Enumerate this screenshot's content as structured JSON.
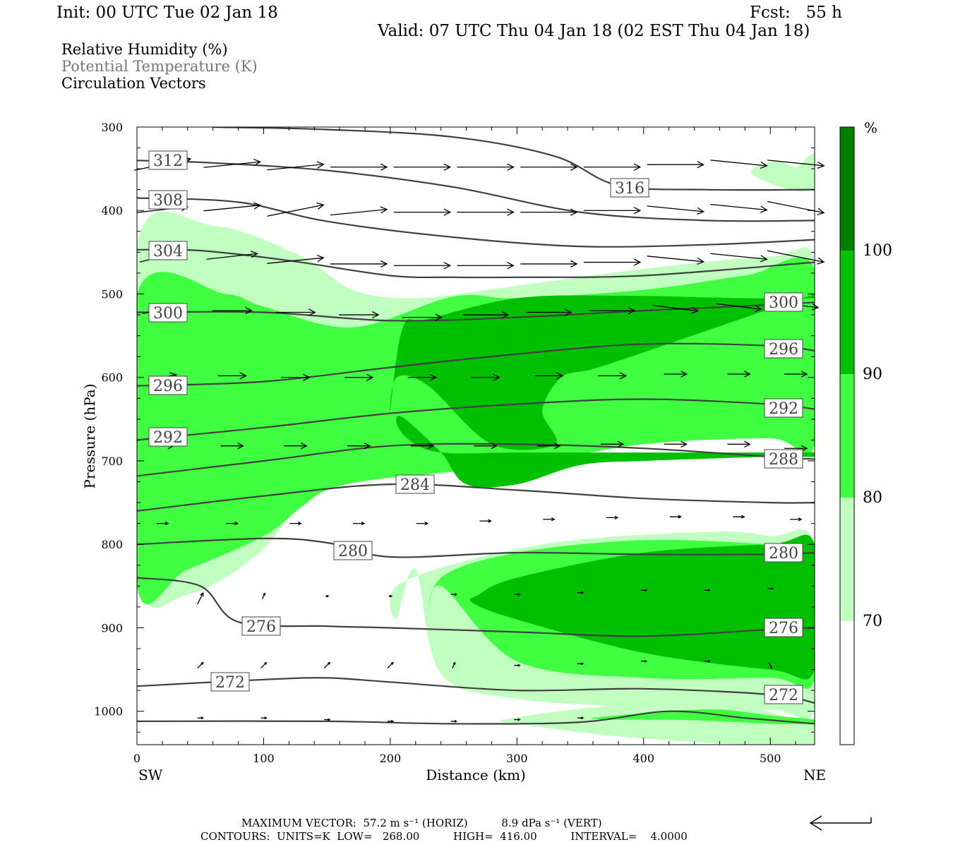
{
  "header": {
    "init": "Init: 00 UTC Tue 02 Jan 18",
    "fcst": "Fcst:   55 h",
    "valid": "Valid: 07 UTC Thu 04 Jan 18 (02 EST Thu 04 Jan 18)",
    "legend_lines": [
      "Relative Humidity (%)",
      "Potential Temperature (K)",
      "Circulation Vectors"
    ]
  },
  "footer": {
    "max_vector": "MAXIMUM VECTOR:  57.2 m s⁻¹ (HORIZ)          8.9 dPa s⁻¹ (VERT)",
    "contours": "CONTOURS:  UNITS=K  LOW=   268.00          HIGH=  416.00          INTERVAL=    4.0000"
  },
  "colors": {
    "rh_70_80": "#c0ffc0",
    "rh_80_90": "#40ff40",
    "rh_90_100": "#00c000",
    "rh_100": "#008000",
    "contour": "#404040"
  },
  "chart_data": {
    "type": "heatmap",
    "title": "Relative Humidity (%)",
    "xlabel": "Distance (km)",
    "ylabel": "Pressure (hPa)",
    "x_end_labels": [
      "SW",
      "NE"
    ],
    "xlim": [
      0,
      535
    ],
    "ylim": [
      300,
      1040
    ],
    "y_inverted": true,
    "xticks": [
      0,
      100,
      200,
      300,
      400,
      500
    ],
    "yticks": [
      300,
      400,
      500,
      600,
      700,
      800,
      900,
      1000
    ],
    "colorbar": {
      "unit": "%",
      "levels": [
        70,
        80,
        90,
        100
      ]
    },
    "theta_contours": [
      {
        "label": "312",
        "x": [
          0,
          60,
          150,
          250,
          350,
          450,
          535
        ],
        "p": [
          340,
          343,
          352,
          372,
          402,
          412,
          412
        ]
      },
      {
        "label": "316",
        "x": [
          60,
          150,
          250,
          330,
          380,
          450,
          535
        ],
        "p": [
          300,
          303,
          312,
          335,
          370,
          375,
          375
        ]
      },
      {
        "label": "308",
        "x": [
          0,
          80,
          150,
          250,
          350,
          450,
          535
        ],
        "p": [
          385,
          390,
          413,
          432,
          443,
          441,
          435
        ]
      },
      {
        "label": "304",
        "x": [
          0,
          50,
          120,
          200,
          250,
          300,
          400,
          535
        ],
        "p": [
          447,
          448,
          460,
          478,
          480,
          480,
          478,
          462
        ]
      },
      {
        "label": "300",
        "x": [
          0,
          100,
          200,
          300,
          400,
          500,
          535
        ],
        "p": [
          522,
          522,
          532,
          528,
          520,
          513,
          510
        ]
      },
      {
        "label": "296",
        "x": [
          0,
          100,
          200,
          300,
          400,
          500,
          535
        ],
        "p": [
          610,
          605,
          588,
          572,
          560,
          562,
          568
        ]
      },
      {
        "label": "292",
        "x": [
          0,
          100,
          200,
          300,
          400,
          500,
          535
        ],
        "p": [
          675,
          660,
          643,
          632,
          626,
          632,
          638
        ]
      },
      {
        "label": "288",
        "x": [
          0,
          100,
          200,
          300,
          400,
          500,
          535
        ],
        "p": [
          718,
          700,
          682,
          680,
          685,
          695,
          698
        ]
      },
      {
        "label": "284",
        "x": [
          0,
          100,
          200,
          300,
          400,
          500,
          535
        ],
        "p": [
          760,
          742,
          728,
          735,
          745,
          750,
          750
        ]
      },
      {
        "label": "280",
        "x": [
          0,
          100,
          150,
          200,
          300,
          400,
          500,
          535
        ],
        "p": [
          800,
          793,
          798,
          815,
          810,
          812,
          812,
          810
        ]
      },
      {
        "label": "276",
        "x": [
          0,
          50,
          80,
          150,
          200,
          300,
          400,
          500,
          535
        ],
        "p": [
          840,
          850,
          893,
          898,
          900,
          905,
          910,
          902,
          900
        ]
      },
      {
        "label": "272",
        "x": [
          0,
          100,
          150,
          200,
          300,
          400,
          500,
          535
        ],
        "p": [
          970,
          962,
          960,
          965,
          975,
          973,
          980,
          990
        ]
      },
      {
        "label": "",
        "x": [
          0,
          150,
          250,
          350,
          420,
          480,
          535
        ],
        "p": [
          1012,
          1012,
          1015,
          1013,
          1000,
          1008,
          1015
        ]
      }
    ],
    "rh_regions": [
      {
        "level": 70,
        "x": [
          0,
          40,
          100,
          150,
          200,
          300,
          400,
          500,
          535,
          535,
          500,
          400,
          300,
          220,
          170,
          130,
          60,
          0
        ],
        "p": [
          835,
          860,
          805,
          705,
          700,
          690,
          665,
          640,
          640,
          460,
          455,
          470,
          490,
          505,
          495,
          455,
          418,
          440
        ]
      },
      {
        "level": 70,
        "x": [
          220,
          240,
          300,
          400,
          500,
          535,
          535,
          500,
          450,
          320,
          210,
          205
        ],
        "p": [
          830,
          955,
          985,
          995,
          998,
          995,
          800,
          790,
          785,
          800,
          845,
          890
        ]
      },
      {
        "level": 70,
        "x": [
          290,
          350,
          420,
          480,
          520,
          535,
          535,
          480,
          380,
          300
        ],
        "p": [
          1010,
          997,
          990,
          995,
          1010,
          1015,
          1040,
          1040,
          1030,
          1015
        ]
      },
      {
        "level": 70,
        "x": [
          485,
          505,
          520,
          535,
          535,
          515
        ],
        "p": [
          355,
          340,
          348,
          332,
          372,
          375
        ]
      },
      {
        "level": 80,
        "x": [
          0,
          40,
          100,
          130,
          150,
          190,
          300,
          400,
          500,
          535,
          535,
          480,
          400,
          300,
          250,
          170,
          100,
          70,
          0
        ],
        "p": [
          850,
          830,
          790,
          755,
          735,
          722,
          705,
          680,
          673,
          680,
          470,
          478,
          495,
          505,
          503,
          540,
          515,
          500,
          500
        ]
      },
      {
        "level": 80,
        "x": [
          240,
          300,
          400,
          500,
          535,
          535,
          500,
          400,
          300,
          240,
          230
        ],
        "p": [
          850,
          940,
          960,
          960,
          962,
          805,
          800,
          795,
          810,
          840,
          895
        ]
      },
      {
        "level": 80,
        "x": [
          360,
          420,
          460,
          500,
          535,
          535,
          500,
          460,
          420,
          380
        ],
        "p": [
          1008,
          1000,
          998,
          1005,
          1010,
          1015,
          1015,
          1012,
          1010,
          1010
        ]
      },
      {
        "level": 90,
        "x": [
          200,
          205,
          230,
          280,
          330,
          320,
          335,
          360,
          400,
          535,
          535,
          480,
          380,
          300,
          230,
          210
        ],
        "p": [
          640,
          600,
          610,
          680,
          680,
          640,
          600,
          590,
          570,
          500,
          505,
          505,
          502,
          505,
          530,
          540
        ]
      },
      {
        "level": 90,
        "x": [
          265,
          300,
          400,
          500,
          535,
          535,
          500,
          400,
          300,
          270
        ],
        "p": [
          870,
          890,
          930,
          950,
          950,
          800,
          800,
          810,
          840,
          860
        ]
      },
      {
        "level": 90,
        "x": [
          210,
          240,
          260,
          300,
          350,
          400,
          500,
          535,
          535,
          500,
          400,
          300,
          240,
          215,
          205
        ],
        "p": [
          648,
          690,
          728,
          728,
          705,
          700,
          695,
          695,
          690,
          690,
          690,
          690,
          690,
          675,
          655
        ]
      }
    ],
    "vectors": [
      {
        "x": 20,
        "p": 345,
        "u": 1,
        "w": 0.2
      },
      {
        "x": 75,
        "p": 345,
        "u": 1,
        "w": 0.1
      },
      {
        "x": 125,
        "p": 348,
        "u": 1,
        "w": 0.1
      },
      {
        "x": 175,
        "p": 348,
        "u": 1,
        "w": 0
      },
      {
        "x": 225,
        "p": 348,
        "u": 1,
        "w": 0
      },
      {
        "x": 275,
        "p": 348,
        "u": 1,
        "w": 0
      },
      {
        "x": 325,
        "p": 348,
        "u": 1,
        "w": 0
      },
      {
        "x": 375,
        "p": 348,
        "u": 1,
        "w": 0
      },
      {
        "x": 425,
        "p": 345,
        "u": 1,
        "w": 0
      },
      {
        "x": 475,
        "p": 343,
        "u": 1,
        "w": -0.1
      },
      {
        "x": 520,
        "p": 343,
        "u": 1,
        "w": -0.1
      },
      {
        "x": 20,
        "p": 399,
        "u": 0.9,
        "w": 0.1
      },
      {
        "x": 75,
        "p": 397,
        "u": 1,
        "w": 0.1
      },
      {
        "x": 125,
        "p": 400,
        "u": 1,
        "w": 0.2
      },
      {
        "x": 175,
        "p": 402,
        "u": 1,
        "w": 0.1
      },
      {
        "x": 225,
        "p": 402,
        "u": 1,
        "w": 0
      },
      {
        "x": 275,
        "p": 402,
        "u": 1,
        "w": 0
      },
      {
        "x": 325,
        "p": 402,
        "u": 1,
        "w": 0
      },
      {
        "x": 375,
        "p": 400,
        "u": 1,
        "w": 0
      },
      {
        "x": 425,
        "p": 398,
        "u": 1,
        "w": -0.1
      },
      {
        "x": 475,
        "p": 396,
        "u": 1,
        "w": -0.1
      },
      {
        "x": 520,
        "p": 396,
        "u": 1,
        "w": -0.2
      },
      {
        "x": 20,
        "p": 455,
        "u": 0.8,
        "w": 0.2
      },
      {
        "x": 75,
        "p": 455,
        "u": 0.9,
        "w": 0.1
      },
      {
        "x": 125,
        "p": 460,
        "u": 1,
        "w": 0.1
      },
      {
        "x": 175,
        "p": 464,
        "u": 1,
        "w": 0
      },
      {
        "x": 225,
        "p": 466,
        "u": 1,
        "w": 0
      },
      {
        "x": 275,
        "p": 466,
        "u": 1,
        "w": 0
      },
      {
        "x": 325,
        "p": 464,
        "u": 1,
        "w": 0
      },
      {
        "x": 375,
        "p": 462,
        "u": 1,
        "w": 0
      },
      {
        "x": 425,
        "p": 458,
        "u": 1,
        "w": -0.1
      },
      {
        "x": 475,
        "p": 455,
        "u": 1,
        "w": -0.1
      },
      {
        "x": 520,
        "p": 455,
        "u": 1,
        "w": -0.2
      },
      {
        "x": 20,
        "p": 520,
        "u": 0.7,
        "w": 0.1
      },
      {
        "x": 75,
        "p": 520,
        "u": 0.7,
        "w": 0
      },
      {
        "x": 125,
        "p": 522,
        "u": 0.7,
        "w": 0
      },
      {
        "x": 175,
        "p": 525,
        "u": 0.7,
        "w": 0
      },
      {
        "x": 225,
        "p": 528,
        "u": 0.7,
        "w": 0
      },
      {
        "x": 275,
        "p": 525,
        "u": 0.8,
        "w": 0
      },
      {
        "x": 325,
        "p": 522,
        "u": 0.8,
        "w": 0
      },
      {
        "x": 375,
        "p": 520,
        "u": 0.8,
        "w": 0
      },
      {
        "x": 425,
        "p": 517,
        "u": 0.8,
        "w": -0.1
      },
      {
        "x": 475,
        "p": 515,
        "u": 0.8,
        "w": -0.1
      },
      {
        "x": 520,
        "p": 513,
        "u": 0.8,
        "w": -0.1
      },
      {
        "x": 20,
        "p": 600,
        "u": 0.5,
        "w": 0.1
      },
      {
        "x": 75,
        "p": 598,
        "u": 0.5,
        "w": 0
      },
      {
        "x": 125,
        "p": 600,
        "u": 0.5,
        "w": 0
      },
      {
        "x": 175,
        "p": 600,
        "u": 0.5,
        "w": 0
      },
      {
        "x": 225,
        "p": 600,
        "u": 0.5,
        "w": 0
      },
      {
        "x": 275,
        "p": 600,
        "u": 0.5,
        "w": 0
      },
      {
        "x": 325,
        "p": 598,
        "u": 0.5,
        "w": 0
      },
      {
        "x": 375,
        "p": 598,
        "u": 0.5,
        "w": 0
      },
      {
        "x": 425,
        "p": 596,
        "u": 0.4,
        "w": 0
      },
      {
        "x": 475,
        "p": 596,
        "u": 0.4,
        "w": 0
      },
      {
        "x": 520,
        "p": 596,
        "u": 0.4,
        "w": 0
      },
      {
        "x": 20,
        "p": 682,
        "u": 0.4,
        "w": 0
      },
      {
        "x": 75,
        "p": 682,
        "u": 0.4,
        "w": 0
      },
      {
        "x": 125,
        "p": 682,
        "u": 0.4,
        "w": 0
      },
      {
        "x": 175,
        "p": 682,
        "u": 0.4,
        "w": 0
      },
      {
        "x": 225,
        "p": 682,
        "u": 0.4,
        "w": 0
      },
      {
        "x": 275,
        "p": 682,
        "u": 0.4,
        "w": 0
      },
      {
        "x": 325,
        "p": 682,
        "u": 0.4,
        "w": 0
      },
      {
        "x": 375,
        "p": 680,
        "u": 0.4,
        "w": 0
      },
      {
        "x": 425,
        "p": 680,
        "u": 0.4,
        "w": 0
      },
      {
        "x": 475,
        "p": 680,
        "u": 0.4,
        "w": 0
      },
      {
        "x": 520,
        "p": 685,
        "u": 0.4,
        "w": 0
      },
      {
        "x": 20,
        "p": 775,
        "u": 0.2,
        "w": 0
      },
      {
        "x": 75,
        "p": 775,
        "u": 0.2,
        "w": 0
      },
      {
        "x": 125,
        "p": 775,
        "u": 0.2,
        "w": 0
      },
      {
        "x": 175,
        "p": 775,
        "u": 0.2,
        "w": 0
      },
      {
        "x": 225,
        "p": 775,
        "u": 0.2,
        "w": 0
      },
      {
        "x": 275,
        "p": 772,
        "u": 0.2,
        "w": 0
      },
      {
        "x": 325,
        "p": 770,
        "u": 0.2,
        "w": 0
      },
      {
        "x": 375,
        "p": 768,
        "u": 0.2,
        "w": 0
      },
      {
        "x": 425,
        "p": 767,
        "u": 0.2,
        "w": 0
      },
      {
        "x": 475,
        "p": 767,
        "u": 0.2,
        "w": 0
      },
      {
        "x": 520,
        "p": 770,
        "u": 0.2,
        "w": 0
      },
      {
        "x": 50,
        "p": 865,
        "u": 0.1,
        "w": 0.2
      },
      {
        "x": 100,
        "p": 862,
        "u": 0.05,
        "w": 0.1
      },
      {
        "x": 150,
        "p": 862,
        "u": 0.05,
        "w": 0
      },
      {
        "x": 200,
        "p": 862,
        "u": 0.05,
        "w": 0
      },
      {
        "x": 250,
        "p": 860,
        "u": 0.1,
        "w": 0
      },
      {
        "x": 300,
        "p": 860,
        "u": 0.1,
        "w": 0
      },
      {
        "x": 350,
        "p": 858,
        "u": 0.1,
        "w": 0
      },
      {
        "x": 400,
        "p": 855,
        "u": 0.1,
        "w": 0
      },
      {
        "x": 450,
        "p": 855,
        "u": 0.1,
        "w": 0
      },
      {
        "x": 500,
        "p": 853,
        "u": 0.1,
        "w": 0
      },
      {
        "x": 50,
        "p": 945,
        "u": 0.1,
        "w": 0.1
      },
      {
        "x": 100,
        "p": 945,
        "u": 0.1,
        "w": 0.1
      },
      {
        "x": 150,
        "p": 945,
        "u": 0.1,
        "w": 0.1
      },
      {
        "x": 200,
        "p": 945,
        "u": 0.1,
        "w": 0.1
      },
      {
        "x": 250,
        "p": 945,
        "u": 0.05,
        "w": 0.1
      },
      {
        "x": 300,
        "p": 945,
        "u": 0.1,
        "w": 0
      },
      {
        "x": 350,
        "p": 943,
        "u": 0.1,
        "w": 0
      },
      {
        "x": 400,
        "p": 940,
        "u": 0.1,
        "w": 0
      },
      {
        "x": 450,
        "p": 940,
        "u": 0.1,
        "w": 0
      },
      {
        "x": 500,
        "p": 945,
        "u": 0.05,
        "w": -0.1
      },
      {
        "x": 50,
        "p": 1008,
        "u": 0.1,
        "w": 0
      },
      {
        "x": 100,
        "p": 1008,
        "u": 0.1,
        "w": 0
      },
      {
        "x": 150,
        "p": 1010,
        "u": 0.1,
        "w": 0
      },
      {
        "x": 200,
        "p": 1012,
        "u": 0.1,
        "w": 0
      },
      {
        "x": 250,
        "p": 1012,
        "u": 0.1,
        "w": 0
      },
      {
        "x": 300,
        "p": 1010,
        "u": 0.1,
        "w": 0
      },
      {
        "x": 350,
        "p": 1008,
        "u": 0.1,
        "w": 0
      }
    ]
  }
}
